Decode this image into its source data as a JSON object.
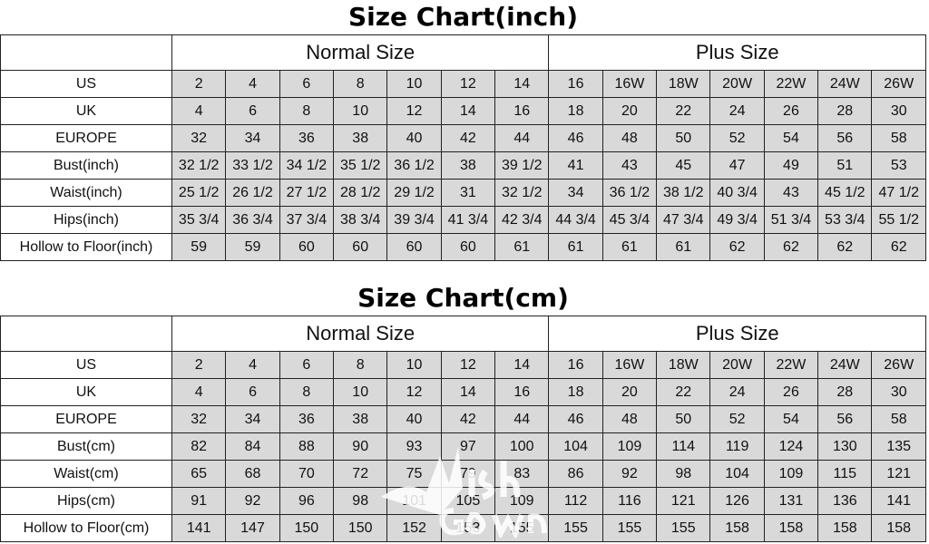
{
  "tables": [
    {
      "title": "Size Chart(inch)",
      "groups": [
        "Normal Size",
        "Plus Size"
      ],
      "rows": [
        {
          "label": "US",
          "values": [
            "2",
            "4",
            "6",
            "8",
            "10",
            "12",
            "14",
            "16",
            "16W",
            "18W",
            "20W",
            "22W",
            "24W",
            "26W"
          ]
        },
        {
          "label": "UK",
          "values": [
            "4",
            "6",
            "8",
            "10",
            "12",
            "14",
            "16",
            "18",
            "20",
            "22",
            "24",
            "26",
            "28",
            "30"
          ]
        },
        {
          "label": "EUROPE",
          "values": [
            "32",
            "34",
            "36",
            "38",
            "40",
            "42",
            "44",
            "46",
            "48",
            "50",
            "52",
            "54",
            "56",
            "58"
          ]
        },
        {
          "label": "Bust(inch)",
          "values": [
            "32 1/2",
            "33 1/2",
            "34 1/2",
            "35 1/2",
            "36 1/2",
            "38",
            "39 1/2",
            "41",
            "43",
            "45",
            "47",
            "49",
            "51",
            "53"
          ]
        },
        {
          "label": "Waist(inch)",
          "values": [
            "25 1/2",
            "26 1/2",
            "27 1/2",
            "28 1/2",
            "29 1/2",
            "31",
            "32 1/2",
            "34",
            "36 1/2",
            "38 1/2",
            "40 3/4",
            "43",
            "45 1/2",
            "47 1/2"
          ]
        },
        {
          "label": "Hips(inch)",
          "values": [
            "35 3/4",
            "36 3/4",
            "37 3/4",
            "38 3/4",
            "39 3/4",
            "41 3/4",
            "42 3/4",
            "44 3/4",
            "45 3/4",
            "47 3/4",
            "49 3/4",
            "51 3/4",
            "53 3/4",
            "55 1/2"
          ]
        },
        {
          "label": "Hollow to Floor(inch)",
          "values": [
            "59",
            "59",
            "60",
            "60",
            "60",
            "60",
            "61",
            "61",
            "61",
            "61",
            "62",
            "62",
            "62",
            "62"
          ]
        }
      ]
    },
    {
      "title": "Size Chart(cm)",
      "groups": [
        "Normal Size",
        "Plus Size"
      ],
      "rows": [
        {
          "label": "US",
          "values": [
            "2",
            "4",
            "6",
            "8",
            "10",
            "12",
            "14",
            "16",
            "16W",
            "18W",
            "20W",
            "22W",
            "24W",
            "26W"
          ]
        },
        {
          "label": "UK",
          "values": [
            "4",
            "6",
            "8",
            "10",
            "12",
            "14",
            "16",
            "18",
            "20",
            "22",
            "24",
            "26",
            "28",
            "30"
          ]
        },
        {
          "label": "EUROPE",
          "values": [
            "32",
            "34",
            "36",
            "38",
            "40",
            "42",
            "44",
            "46",
            "48",
            "50",
            "52",
            "54",
            "56",
            "58"
          ]
        },
        {
          "label": "Bust(cm)",
          "values": [
            "82",
            "84",
            "88",
            "90",
            "93",
            "97",
            "100",
            "104",
            "109",
            "114",
            "119",
            "124",
            "130",
            "135"
          ]
        },
        {
          "label": "Waist(cm)",
          "values": [
            "65",
            "68",
            "70",
            "72",
            "75",
            "79",
            "83",
            "86",
            "92",
            "98",
            "104",
            "109",
            "115",
            "121"
          ]
        },
        {
          "label": "Hips(cm)",
          "values": [
            "91",
            "92",
            "96",
            "98",
            "101",
            "105",
            "109",
            "112",
            "116",
            "121",
            "126",
            "131",
            "136",
            "141"
          ]
        },
        {
          "label": "Hollow to Floor(cm)",
          "values": [
            "141",
            "147",
            "150",
            "150",
            "152",
            "153",
            "155",
            "155",
            "155",
            "155",
            "158",
            "158",
            "158",
            "158"
          ]
        }
      ]
    }
  ],
  "watermark": "Wish Gown"
}
